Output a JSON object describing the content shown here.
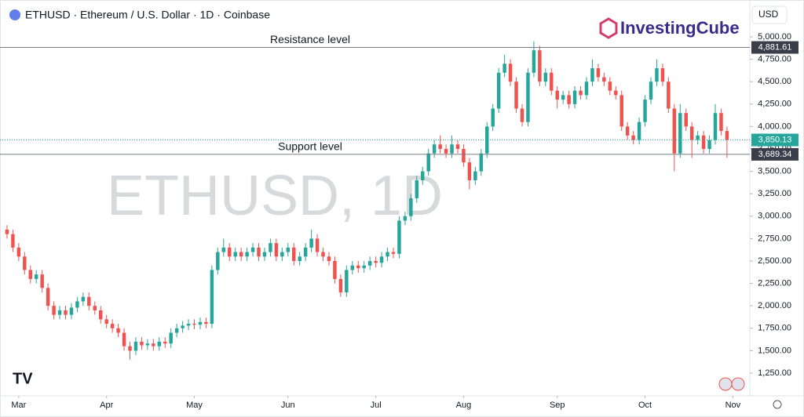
{
  "chart_data": {
    "type": "candlestick",
    "title": "ETHUSD · Ethereum / U.S. Dollar · 1D · Coinbase",
    "currency": "USD",
    "brand": "InvestingCube",
    "watermark": "ETHUSD, 1D",
    "up_color": "#26a69a",
    "down_color": "#ef5350",
    "open": [
      2850,
      2800,
      2650,
      2550,
      2400,
      2300,
      2350,
      2200,
      2000,
      1900,
      1950,
      1900,
      1980,
      2050,
      2100,
      2000,
      1950,
      1850,
      1800,
      1750,
      1700,
      1550,
      1500,
      1600,
      1560,
      1580,
      1550,
      1600,
      1580,
      1700,
      1750,
      1780,
      1800,
      1790,
      1820,
      1800,
      2400,
      2600,
      2650,
      2550,
      2600,
      2550,
      2600,
      2650,
      2550,
      2600,
      2700,
      2550,
      2600,
      2650,
      2500,
      2550,
      2650,
      2750,
      2600,
      2550,
      2500,
      2300,
      2150,
      2400,
      2450,
      2420,
      2450,
      2500,
      2480,
      2550,
      2600,
      2580,
      2950,
      3000,
      3200,
      3400,
      3500,
      3700,
      3800,
      3750,
      3700,
      3800,
      3750,
      3600,
      3400,
      3500,
      3700,
      4000,
      4200,
      4600,
      4700,
      4500,
      4200,
      4050,
      4600,
      4850,
      4500,
      4600,
      4400,
      4300,
      4350,
      4250,
      4400,
      4350,
      4500,
      4650,
      4550,
      4500,
      4400,
      4350,
      4000,
      3900,
      3850,
      4050,
      4300,
      4500,
      4650,
      4500,
      4200,
      3700,
      4150,
      4000,
      3850,
      3900,
      3750,
      3850,
      4150,
      3950
    ],
    "high": [
      2900,
      2850,
      2700,
      2600,
      2450,
      2400,
      2400,
      2250,
      2050,
      2000,
      2000,
      2030,
      2100,
      2150,
      2150,
      2050,
      2000,
      1900,
      1850,
      1800,
      1750,
      1600,
      1650,
      1650,
      1630,
      1630,
      1650,
      1650,
      1750,
      1800,
      1830,
      1850,
      1850,
      1870,
      1870,
      2450,
      2650,
      2750,
      2700,
      2650,
      2650,
      2650,
      2700,
      2700,
      2650,
      2750,
      2750,
      2650,
      2700,
      2700,
      2600,
      2700,
      2850,
      2800,
      2650,
      2600,
      2550,
      2350,
      2450,
      2500,
      2500,
      2500,
      2550,
      2550,
      2600,
      2650,
      2650,
      3000,
      3050,
      3250,
      3450,
      3550,
      3750,
      3850,
      3900,
      3800,
      3900,
      3850,
      3800,
      3650,
      3550,
      3750,
      4050,
      4250,
      4650,
      4800,
      4750,
      4550,
      4250,
      4650,
      4950,
      4900,
      4650,
      4650,
      4450,
      4400,
      4400,
      4450,
      4450,
      4550,
      4750,
      4700,
      4600,
      4550,
      4450,
      4400,
      4050,
      3950,
      4100,
      4350,
      4550,
      4750,
      4700,
      4550,
      4250,
      4250,
      4200,
      4050,
      3950,
      3950,
      3900,
      4250,
      4200,
      4000
    ],
    "low": [
      2750,
      2600,
      2500,
      2350,
      2250,
      2250,
      2150,
      1950,
      1850,
      1850,
      1850,
      1850,
      1930,
      2000,
      1950,
      1900,
      1800,
      1750,
      1700,
      1650,
      1500,
      1400,
      1450,
      1510,
      1510,
      1500,
      1500,
      1530,
      1530,
      1650,
      1700,
      1730,
      1740,
      1740,
      1750,
      1750,
      2350,
      2550,
      2500,
      2500,
      2500,
      2500,
      2550,
      2500,
      2500,
      2550,
      2500,
      2500,
      2550,
      2450,
      2450,
      2500,
      2600,
      2550,
      2500,
      2450,
      2250,
      2100,
      2100,
      2350,
      2370,
      2370,
      2400,
      2430,
      2430,
      2500,
      2530,
      2530,
      2900,
      2950,
      3150,
      3350,
      3450,
      3650,
      3700,
      3650,
      3650,
      3700,
      3550,
      3300,
      3350,
      3450,
      3650,
      3950,
      4150,
      4550,
      4450,
      4150,
      4000,
      4000,
      4550,
      4450,
      4450,
      4350,
      4200,
      4250,
      4200,
      4200,
      4300,
      4300,
      4450,
      4500,
      4450,
      4350,
      4300,
      3950,
      3850,
      3800,
      3800,
      4000,
      4250,
      4450,
      4450,
      4150,
      3500,
      3650,
      3950,
      3650,
      3800,
      3700,
      3700,
      3800,
      3900,
      3650
    ],
    "close": [
      2800,
      2650,
      2550,
      2400,
      2300,
      2350,
      2200,
      2000,
      1900,
      1950,
      1900,
      1980,
      2050,
      2100,
      2000,
      1950,
      1850,
      1800,
      1750,
      1700,
      1550,
      1500,
      1600,
      1560,
      1580,
      1550,
      1600,
      1580,
      1700,
      1750,
      1780,
      1800,
      1790,
      1820,
      1800,
      2400,
      2600,
      2650,
      2550,
      2600,
      2550,
      2600,
      2650,
      2550,
      2600,
      2700,
      2550,
      2600,
      2650,
      2500,
      2550,
      2650,
      2750,
      2600,
      2550,
      2500,
      2300,
      2150,
      2400,
      2450,
      2420,
      2450,
      2500,
      2480,
      2550,
      2600,
      2580,
      2950,
      3000,
      3200,
      3400,
      3500,
      3700,
      3800,
      3750,
      3700,
      3800,
      3750,
      3600,
      3400,
      3500,
      3700,
      4000,
      4200,
      4600,
      4700,
      4500,
      4200,
      4050,
      4600,
      4850,
      4500,
      4600,
      4400,
      4300,
      4350,
      4250,
      4400,
      4350,
      4500,
      4650,
      4550,
      4500,
      4400,
      4350,
      4000,
      3900,
      3850,
      4050,
      4300,
      4500,
      4650,
      4500,
      4200,
      3700,
      4150,
      4000,
      3850,
      3900,
      3750,
      3850,
      4150,
      3950,
      3850.13
    ],
    "xlim": [
      -1.2,
      126.9
    ],
    "xticks": [
      {
        "value": 2,
        "label": "Mar"
      },
      {
        "value": 17,
        "label": "Apr"
      },
      {
        "value": 32,
        "label": "May"
      },
      {
        "value": 48,
        "label": "Jun"
      },
      {
        "value": 63,
        "label": "Jul"
      },
      {
        "value": 78,
        "label": "Aug"
      },
      {
        "value": 94,
        "label": "Sep"
      },
      {
        "value": 109,
        "label": "Oct"
      },
      {
        "value": 124,
        "label": "Nov"
      }
    ],
    "ylim": [
      996.5,
      5410.8
    ],
    "yticks": [
      {
        "value": 1250,
        "label": "1,250.00"
      },
      {
        "value": 1500,
        "label": "1,500.00"
      },
      {
        "value": 1750,
        "label": "1,750.00"
      },
      {
        "value": 2000,
        "label": "2,000.00"
      },
      {
        "value": 2250,
        "label": "2,250.00"
      },
      {
        "value": 2500,
        "label": "2,500.00"
      },
      {
        "value": 2750,
        "label": "2,750.00"
      },
      {
        "value": 3000,
        "label": "3,000.00"
      },
      {
        "value": 3250,
        "label": "3,250.00"
      },
      {
        "value": 3500,
        "label": "3,500.00"
      },
      {
        "value": 3750,
        "label": "3,750.00"
      },
      {
        "value": 4000,
        "label": "4,000.00"
      },
      {
        "value": 4250,
        "label": "4,250.00"
      },
      {
        "value": 4500,
        "label": "4,500.00"
      },
      {
        "value": 4750,
        "label": "4,750.00"
      },
      {
        "value": 5000,
        "label": "5,000.00"
      }
    ],
    "levels": [
      {
        "value": 4881.61,
        "label": "4,881.61",
        "text": "Resistance level",
        "color": "#787b86"
      },
      {
        "value": 3689.34,
        "label": "3,689.34",
        "text": "Support level",
        "color": "#787b86"
      }
    ],
    "last_price": {
      "value": 3850.13,
      "label": "3,850.13",
      "color": "#26a69a"
    }
  }
}
